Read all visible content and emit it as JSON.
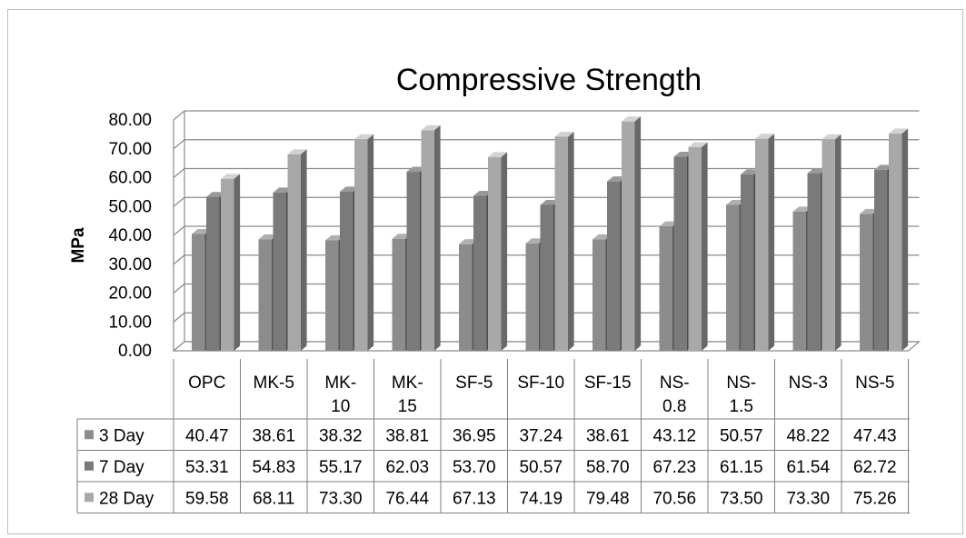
{
  "chart_data": {
    "type": "bar",
    "title": "Compressive Strength",
    "ylabel": "MPa",
    "xlabel": "",
    "ylim": [
      0,
      80
    ],
    "ytick_step": 10,
    "ytick_labels": [
      "0.00",
      "10.00",
      "20.00",
      "30.00",
      "40.00",
      "50.00",
      "60.00",
      "70.00",
      "80.00"
    ],
    "grid": true,
    "legend": "data-table",
    "categories": [
      "OPC",
      "MK-5",
      "MK-10",
      "MK-15",
      "SF-5",
      "SF-10",
      "SF-15",
      "NS-0.8",
      "NS-1.5",
      "NS-3",
      "NS-5"
    ],
    "category_lines": [
      [
        "OPC"
      ],
      [
        "MK-5"
      ],
      [
        "MK-",
        "10"
      ],
      [
        "MK-",
        "15"
      ],
      [
        "SF-5"
      ],
      [
        "SF-10"
      ],
      [
        "SF-15"
      ],
      [
        "NS-",
        "0.8"
      ],
      [
        "NS-",
        "1.5"
      ],
      [
        "NS-3"
      ],
      [
        "NS-5"
      ]
    ],
    "series": [
      {
        "name": "3 Day",
        "color": "#8c8c8c",
        "values": [
          40.47,
          38.61,
          38.32,
          38.81,
          36.95,
          37.24,
          38.61,
          43.12,
          50.57,
          48.22,
          47.43
        ],
        "labels": [
          "40.47",
          "38.61",
          "38.32",
          "38.81",
          "36.95",
          "37.24",
          "38.61",
          "43.12",
          "50.57",
          "48.22",
          "47.43"
        ]
      },
      {
        "name": "7 Day",
        "color": "#7a7a7a",
        "values": [
          53.31,
          54.83,
          55.17,
          62.03,
          53.7,
          50.57,
          58.7,
          67.23,
          61.15,
          61.54,
          62.72
        ],
        "labels": [
          "53.31",
          "54.83",
          "55.17",
          "62.03",
          "53.70",
          "50.57",
          "58.70",
          "67.23",
          "61.15",
          "61.54",
          "62.72"
        ]
      },
      {
        "name": "28 Day",
        "color": "#a8a8a8",
        "values": [
          59.58,
          68.11,
          73.3,
          76.44,
          67.13,
          74.19,
          79.48,
          70.56,
          73.5,
          73.3,
          75.26
        ],
        "labels": [
          "59.58",
          "68.11",
          "73.30",
          "76.44",
          "67.13",
          "74.19",
          "79.48",
          "70.56",
          "73.50",
          "73.30",
          "75.26"
        ]
      }
    ]
  }
}
